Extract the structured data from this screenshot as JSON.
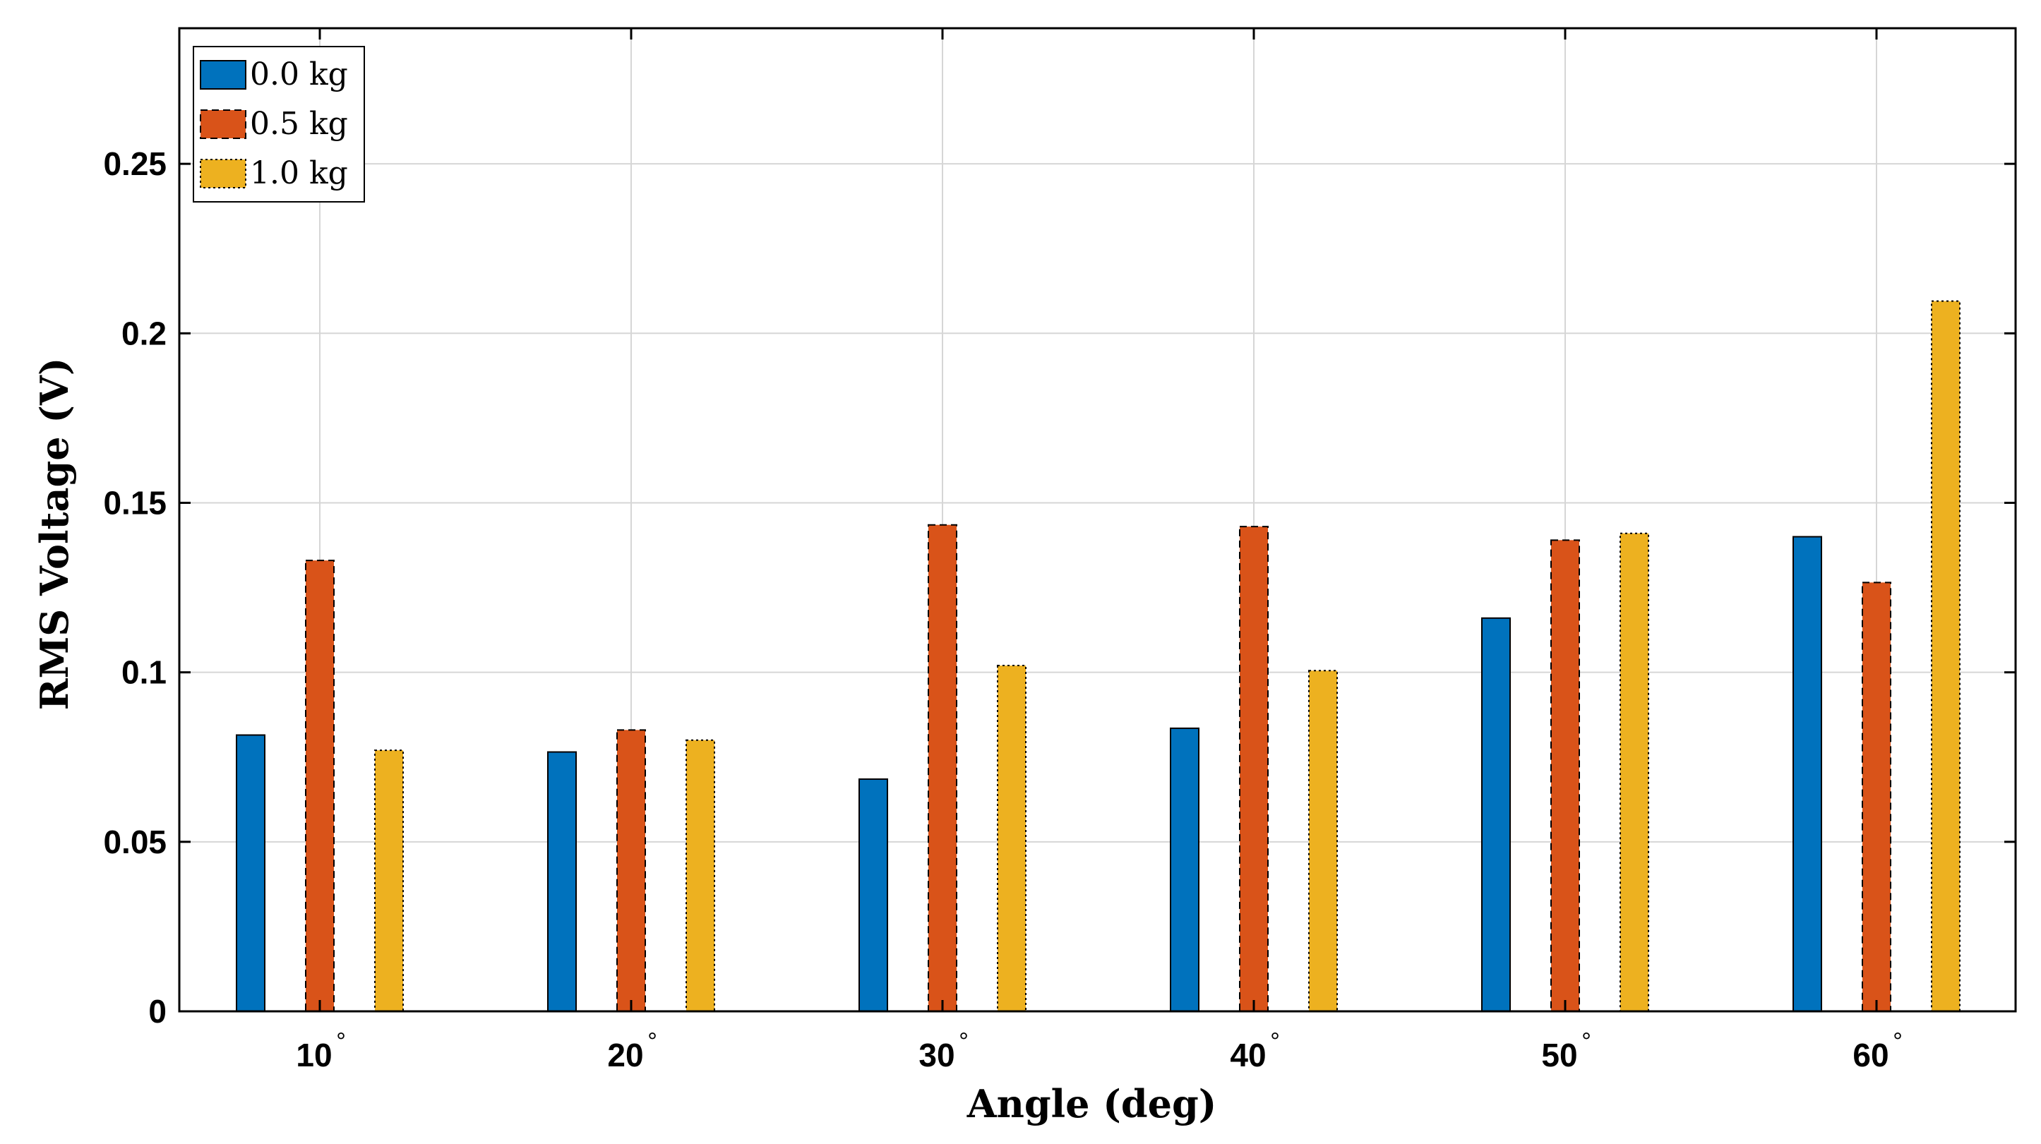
{
  "chart_data": {
    "type": "bar",
    "title": "",
    "xlabel": "Angle (deg)",
    "ylabel": "RMS Voltage (V)",
    "categories": [
      "10",
      "20",
      "30",
      "40",
      "50",
      "60"
    ],
    "degree_symbol": "°",
    "series": [
      {
        "name": "0.0 kg",
        "color": "#0072BD",
        "border": "solid",
        "values": [
          0.0815,
          0.0765,
          0.0685,
          0.0835,
          0.116,
          0.14
        ]
      },
      {
        "name": "0.5 kg",
        "color": "#D95319",
        "border": "dashed",
        "values": [
          0.133,
          0.083,
          0.1435,
          0.143,
          0.139,
          0.1265
        ]
      },
      {
        "name": "1.0 kg",
        "color": "#EDB120",
        "border": "dotted",
        "values": [
          0.077,
          0.08,
          0.102,
          0.1005,
          0.141,
          0.2095
        ]
      }
    ],
    "ylim": [
      0,
      0.29
    ],
    "yticks": [
      0,
      0.05,
      0.1,
      0.15,
      0.2,
      0.25
    ],
    "ytick_labels": [
      "0",
      "0.05",
      "0.1",
      "0.15",
      "0.2",
      "0.25"
    ],
    "grid": true,
    "legend_position": "top-left"
  }
}
